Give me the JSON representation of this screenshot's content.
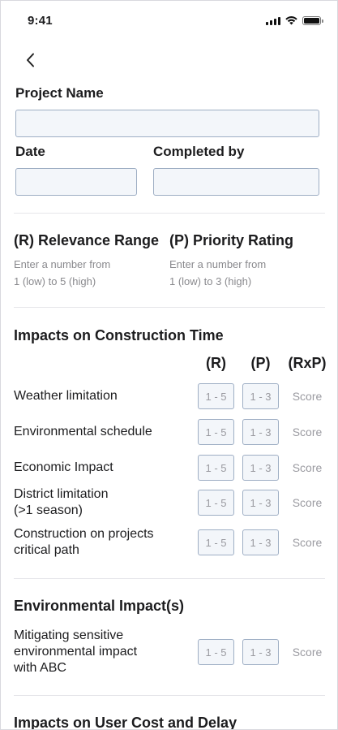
{
  "status_bar": {
    "time": "9:41"
  },
  "form": {
    "project_name_label": "Project Name",
    "project_name_value": "",
    "date_label": "Date",
    "date_value": "",
    "completed_by_label": "Completed by",
    "completed_by_value": ""
  },
  "legend": {
    "relevance_title": "(R) Relevance Range",
    "relevance_hint_line1": "Enter a number from",
    "relevance_hint_line2": "1 (low) to 5 (high)",
    "priority_title": "(P) Priority Rating",
    "priority_hint_line1": "Enter a number from",
    "priority_hint_line2": "1 (low) to 3 (high)"
  },
  "columns": {
    "r": "(R)",
    "p": "(P)",
    "rxp": "(RxP)"
  },
  "placeholders": {
    "r": "1 - 5",
    "p": "1 - 3",
    "score": "Score"
  },
  "sections": {
    "construction_time": {
      "title": "Impacts on Construction Time",
      "rows": [
        {
          "line1": "Weather limitation",
          "line2": ""
        },
        {
          "line1": "Environmental schedule",
          "line2": ""
        },
        {
          "line1": "Economic Impact",
          "line2": ""
        },
        {
          "line1": "District limitation",
          "line2": "(>1 season)"
        },
        {
          "line1": "Construction on projects",
          "line2": "critical path"
        }
      ]
    },
    "environmental": {
      "title": "Environmental Impact(s)",
      "rows": [
        {
          "line1": "Mitigating sensitive",
          "line2": "environmental impact",
          "line3": "with ABC"
        }
      ]
    },
    "user_cost": {
      "title": "Impacts on User Cost and Delay"
    }
  }
}
